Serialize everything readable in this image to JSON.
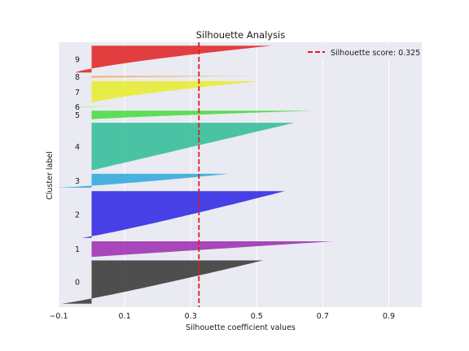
{
  "chart_data": {
    "type": "silhouette",
    "title": "Silhouette Analysis",
    "xlabel": "Silhouette coefficient values",
    "ylabel": "Cluster label",
    "xlim": [
      -0.1,
      1.0
    ],
    "x_ticks": [
      -0.1,
      0.1,
      0.3,
      0.5,
      0.7,
      0.9
    ],
    "x_tick_labels": [
      "−0.1",
      "0.1",
      "0.3",
      "0.5",
      "0.7",
      "0.9"
    ],
    "grid": true,
    "legend": {
      "label": "Silhouette score: 0.325",
      "placement": "top-right"
    },
    "average_line": {
      "value": 0.325,
      "color": "#e31a1c",
      "style": "dashed"
    },
    "clusters": [
      {
        "label": "0",
        "color": "#333333",
        "size": 50,
        "max": 0.52,
        "min": -0.09,
        "shape": 0.9
      },
      {
        "label": "1",
        "color": "#9b2aaf",
        "size": 18,
        "max": 0.73,
        "min": 0.0,
        "shape": 1.0
      },
      {
        "label": "2",
        "color": "#2a22e4",
        "size": 54,
        "max": 0.585,
        "min": -0.03,
        "shape": 0.9
      },
      {
        "label": "3",
        "color": "#2aa7dc",
        "size": 16,
        "max": 0.415,
        "min": -0.11,
        "shape": 0.8
      },
      {
        "label": "4",
        "color": "#2dbc95",
        "size": 55,
        "max": 0.615,
        "min": 0.0,
        "shape": 1.0
      },
      {
        "label": "5",
        "color": "#44dd3a",
        "size": 10,
        "max": 0.68,
        "min": 0.0,
        "shape": 1.2
      },
      {
        "label": "6",
        "color": "#9ee83a",
        "size": 1,
        "max": 0.06,
        "min": -0.1,
        "shape": 1.0
      },
      {
        "label": "7",
        "color": "#e8ec2a",
        "size": 25,
        "max": 0.505,
        "min": 0.0,
        "shape": 1.3
      },
      {
        "label": "8",
        "color": "#f0a84a",
        "size": 2,
        "max": 0.485,
        "min": -0.04,
        "shape": 1.0
      },
      {
        "label": "9",
        "color": "#e02020",
        "size": 31,
        "max": 0.545,
        "min": -0.05,
        "shape": 1.3
      }
    ],
    "gap": 4
  },
  "style": {
    "plot_bg": "#eaeaf2",
    "grid_color": "#ffffff",
    "text_color": "#1a1a1a"
  }
}
